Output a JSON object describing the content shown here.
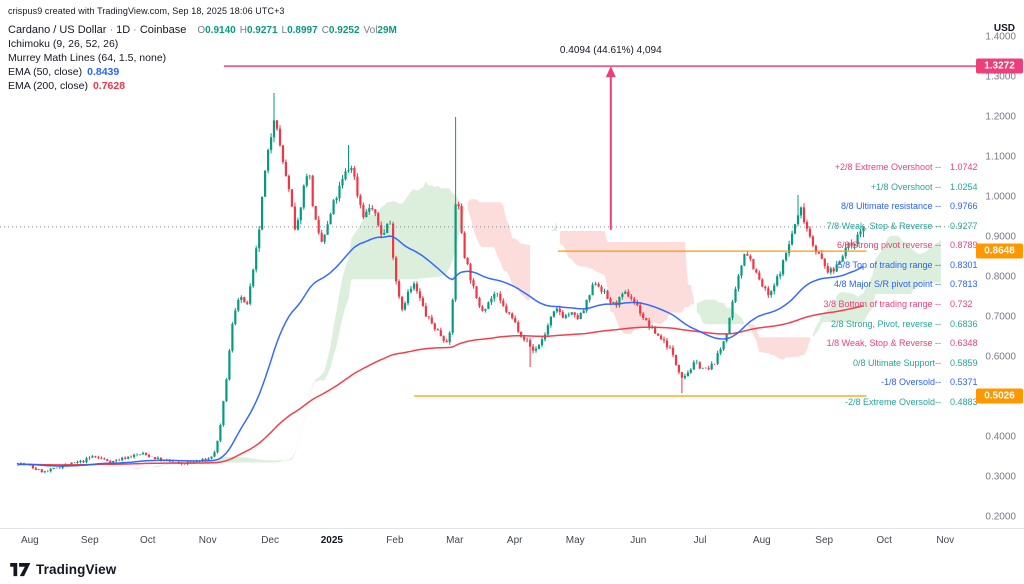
{
  "attribution": "crispus9 created with TradingView.com, Sep 18, 2025 18:06 UTC+3",
  "legend": {
    "symbol": "Cardano / US Dollar",
    "sep": "·",
    "interval": "1D",
    "exchange": "Coinbase",
    "ohlc": [
      {
        "label": "O",
        "value": "0.9140"
      },
      {
        "label": "H",
        "value": "0.9271"
      },
      {
        "label": "L",
        "value": "0.8997"
      },
      {
        "label": "C",
        "value": "0.9252"
      }
    ],
    "vol_label": "Vol",
    "vol_value": "29M",
    "indicators": [
      {
        "name": "Ichimoku (9, 26, 52, 26)",
        "value": "",
        "color": ""
      },
      {
        "name": "Murrey Math Lines (64, 1.5, none)",
        "value": "",
        "color": ""
      },
      {
        "name": "EMA (50, close)",
        "value": "0.8439",
        "color": "#2962ff"
      },
      {
        "name": "EMA (200, close)",
        "value": "0.7628",
        "color": "#f23645"
      }
    ]
  },
  "axis": {
    "currency": "USD",
    "y_ticks": [
      "1.4000",
      "1.3000",
      "1.2000",
      "1.1000",
      "1.0000",
      "0.9000",
      "0.8000",
      "0.7000",
      "0.6000",
      "0.5000",
      "0.4000",
      "0.3000",
      "0.2000"
    ],
    "x_labels": [
      {
        "label": "Aug",
        "t": 0.19
      },
      {
        "label": "Sep",
        "t": 1.15
      },
      {
        "label": "Oct",
        "t": 2.08
      },
      {
        "label": "Nov",
        "t": 3.04
      },
      {
        "label": "Dec",
        "t": 4.04
      },
      {
        "label": "2025",
        "t": 5.03,
        "bold": true
      },
      {
        "label": "Feb",
        "t": 6.04
      },
      {
        "label": "Mar",
        "t": 7.0
      },
      {
        "label": "Apr",
        "t": 7.96
      },
      {
        "label": "May",
        "t": 8.93
      },
      {
        "label": "Jun",
        "t": 9.94
      },
      {
        "label": "Jul",
        "t": 10.93
      },
      {
        "label": "Aug",
        "t": 11.92
      },
      {
        "label": "Sep",
        "t": 12.92
      },
      {
        "label": "Oct",
        "t": 13.88
      },
      {
        "label": "Nov",
        "t": 14.86
      }
    ]
  },
  "chart_data": {
    "type": "candlestick",
    "title": "Cardano / US Dollar · 1D · Coinbase",
    "ylim": [
      0.2,
      1.4
    ],
    "x_unit": "months since Aug 2024",
    "last_candle": {
      "o": 0.914,
      "h": 0.9271,
      "l": 0.8997,
      "c": 0.9252,
      "vol": "29M"
    },
    "emas": [
      {
        "period": 50,
        "last": 0.8439,
        "color": "#2962ff"
      },
      {
        "period": 200,
        "last": 0.7628,
        "color": "#f23645"
      }
    ],
    "ichimoku_params": [
      9,
      26,
      52,
      26
    ],
    "murrey_params": "64, 1.5, none",
    "colors": {
      "up": "#089981",
      "down": "#f23645",
      "cloud_up": "#4caf50",
      "cloud_down": "#ef5350"
    },
    "anchors": [
      [
        0,
        0.335
      ],
      [
        0.15,
        0.33
      ],
      [
        0.3,
        0.318
      ],
      [
        0.45,
        0.312
      ],
      [
        0.6,
        0.322
      ],
      [
        0.75,
        0.33
      ],
      [
        0.9,
        0.334
      ],
      [
        1.05,
        0.34
      ],
      [
        1.2,
        0.352
      ],
      [
        1.35,
        0.345
      ],
      [
        1.5,
        0.338
      ],
      [
        1.65,
        0.345
      ],
      [
        1.8,
        0.352
      ],
      [
        2,
        0.358
      ],
      [
        2.15,
        0.35
      ],
      [
        2.3,
        0.342
      ],
      [
        2.45,
        0.338
      ],
      [
        2.6,
        0.333
      ],
      [
        2.75,
        0.336
      ],
      [
        2.9,
        0.34
      ],
      [
        3.05,
        0.345
      ],
      [
        3.15,
        0.36
      ],
      [
        3.25,
        0.43
      ],
      [
        3.35,
        0.56
      ],
      [
        3.45,
        0.7
      ],
      [
        3.55,
        0.76
      ],
      [
        3.65,
        0.72
      ],
      [
        3.75,
        0.79
      ],
      [
        3.85,
        0.9
      ],
      [
        3.95,
        1.05
      ],
      [
        4.05,
        1.15
      ],
      [
        4.12,
        1.22
      ],
      [
        4.2,
        1.12
      ],
      [
        4.3,
        1.05
      ],
      [
        4.38,
        0.98
      ],
      [
        4.45,
        0.9
      ],
      [
        4.55,
        1.0
      ],
      [
        4.65,
        1.08
      ],
      [
        4.75,
        0.95
      ],
      [
        4.85,
        0.88
      ],
      [
        4.95,
        0.92
      ],
      [
        5.05,
        0.98
      ],
      [
        5.15,
        1.02
      ],
      [
        5.25,
        1.06
      ],
      [
        5.35,
        1.08
      ],
      [
        5.45,
        1.0
      ],
      [
        5.55,
        0.95
      ],
      [
        5.65,
        0.98
      ],
      [
        5.75,
        0.94
      ],
      [
        5.85,
        0.9
      ],
      [
        5.95,
        0.95
      ],
      [
        6.05,
        0.8
      ],
      [
        6.15,
        0.72
      ],
      [
        6.25,
        0.76
      ],
      [
        6.35,
        0.78
      ],
      [
        6.45,
        0.74
      ],
      [
        6.55,
        0.7
      ],
      [
        6.65,
        0.68
      ],
      [
        6.75,
        0.66
      ],
      [
        6.85,
        0.64
      ],
      [
        6.95,
        0.66
      ],
      [
        7.02,
        1.02
      ],
      [
        7.08,
        0.95
      ],
      [
        7.15,
        0.86
      ],
      [
        7.25,
        0.8
      ],
      [
        7.35,
        0.74
      ],
      [
        7.45,
        0.72
      ],
      [
        7.55,
        0.74
      ],
      [
        7.65,
        0.76
      ],
      [
        7.75,
        0.73
      ],
      [
        7.85,
        0.71
      ],
      [
        7.95,
        0.69
      ],
      [
        8.05,
        0.66
      ],
      [
        8.15,
        0.64
      ],
      [
        8.25,
        0.615
      ],
      [
        8.35,
        0.63
      ],
      [
        8.45,
        0.66
      ],
      [
        8.55,
        0.7
      ],
      [
        8.65,
        0.72
      ],
      [
        8.75,
        0.7
      ],
      [
        8.85,
        0.71
      ],
      [
        8.95,
        0.695
      ],
      [
        9.05,
        0.71
      ],
      [
        9.15,
        0.75
      ],
      [
        9.25,
        0.79
      ],
      [
        9.35,
        0.77
      ],
      [
        9.45,
        0.745
      ],
      [
        9.55,
        0.73
      ],
      [
        9.65,
        0.745
      ],
      [
        9.75,
        0.76
      ],
      [
        9.85,
        0.745
      ],
      [
        9.95,
        0.72
      ],
      [
        10.05,
        0.69
      ],
      [
        10.15,
        0.67
      ],
      [
        10.25,
        0.655
      ],
      [
        10.35,
        0.64
      ],
      [
        10.45,
        0.62
      ],
      [
        10.55,
        0.58
      ],
      [
        10.65,
        0.55
      ],
      [
        10.75,
        0.565
      ],
      [
        10.85,
        0.585
      ],
      [
        10.95,
        0.575
      ],
      [
        11.05,
        0.565
      ],
      [
        11.15,
        0.585
      ],
      [
        11.25,
        0.615
      ],
      [
        11.35,
        0.66
      ],
      [
        11.45,
        0.73
      ],
      [
        11.55,
        0.8
      ],
      [
        11.65,
        0.87
      ],
      [
        11.75,
        0.84
      ],
      [
        11.85,
        0.8
      ],
      [
        11.95,
        0.77
      ],
      [
        12.05,
        0.75
      ],
      [
        12.15,
        0.79
      ],
      [
        12.25,
        0.83
      ],
      [
        12.35,
        0.88
      ],
      [
        12.45,
        0.93
      ],
      [
        12.55,
        0.97
      ],
      [
        12.65,
        0.92
      ],
      [
        12.75,
        0.88
      ],
      [
        12.85,
        0.85
      ],
      [
        12.95,
        0.82
      ],
      [
        13.05,
        0.81
      ],
      [
        13.15,
        0.84
      ],
      [
        13.25,
        0.87
      ],
      [
        13.35,
        0.88
      ],
      [
        13.45,
        0.9
      ],
      [
        13.55,
        0.9252
      ]
    ],
    "wick_extremes": [
      {
        "t": 4.12,
        "h": 1.26
      },
      {
        "t": 5.3,
        "h": 1.13
      },
      {
        "t": 7.02,
        "h": 1.2
      },
      {
        "t": 8.22,
        "l": 0.575
      },
      {
        "t": 10.62,
        "l": 0.51
      },
      {
        "t": 12.5,
        "h": 1.005
      }
    ],
    "murrey_levels": [
      {
        "name": "+2/8 Extreme Overshoot --",
        "value": "1.0742",
        "price": 1.0742,
        "color": "#ec407a"
      },
      {
        "name": "+1/8 Overshoot --",
        "value": "1.0254",
        "price": 1.0254,
        "color": "#26a69a"
      },
      {
        "name": "8/8 Ultimate resistance --",
        "value": "0.9766",
        "price": 0.9766,
        "color": "#2962ff"
      },
      {
        "name": "7/8 Weak, Stop & Reverse --",
        "value": "0.9277",
        "price": 0.9277,
        "color": "#26a69a"
      },
      {
        "name": "6/8 Strong pivot reverse --",
        "value": "0.8789",
        "price": 0.8789,
        "color": "#ec407a"
      },
      {
        "name": "5/8 Top of trading range --",
        "value": "0.8301",
        "price": 0.8301,
        "color": "#2962ff"
      },
      {
        "name": "4/8 Major S/R pivot point --",
        "value": "0.7813",
        "price": 0.7813,
        "color": "#2962ff"
      },
      {
        "name": "3/8 Bottom of trading range --",
        "value": "0.732",
        "price": 0.732,
        "color": "#ec407a"
      },
      {
        "name": "2/8 Strong, Pivot, reverse --",
        "value": "0.6836",
        "price": 0.6836,
        "color": "#26a69a"
      },
      {
        "name": "1/8 Weak, Stop & Reverse --",
        "value": "0.6348",
        "price": 0.6348,
        "color": "#ec407a"
      },
      {
        "name": "0/8 Ultimate Support--",
        "value": "0.5859",
        "price": 0.5859,
        "color": "#26a69a"
      },
      {
        "name": "-1/8 Oversold--",
        "value": "0.5371",
        "price": 0.5371,
        "color": "#2962ff"
      },
      {
        "name": "-2/8 Extreme Oversold--",
        "value": "0.4883",
        "price": 0.4883,
        "color": "#26a69a"
      }
    ],
    "rays": [
      {
        "price": 1.3272,
        "from_t": 3.3,
        "to_t": 15.87,
        "color": "#ec407a",
        "width": 1.5
      },
      {
        "price": 0.8648,
        "from_t": 8.65,
        "to_t": 13.6,
        "color": "#ff9800",
        "width": 1.3
      },
      {
        "price": 0.5026,
        "from_t": 6.35,
        "to_t": 13.6,
        "color": "#ff9800",
        "width": 1.3
      }
    ],
    "price_line": {
      "price": 0.9252,
      "color": "#787b86"
    },
    "annotation": {
      "text": "0.4094 (44.61%) 4,094",
      "t": 9.5,
      "from_price": 0.9178,
      "to_price": 1.3272,
      "color": "#ec407a"
    },
    "price_labels": [
      {
        "value": "1.3272",
        "price": 1.3272,
        "color": "#ec407a"
      },
      {
        "value": "0.8648",
        "price": 0.8648,
        "color": "#ff9800"
      },
      {
        "value": "0.5026",
        "price": 0.5026,
        "color": "#ff9800"
      }
    ]
  },
  "logo": {
    "text": "TradingView"
  }
}
